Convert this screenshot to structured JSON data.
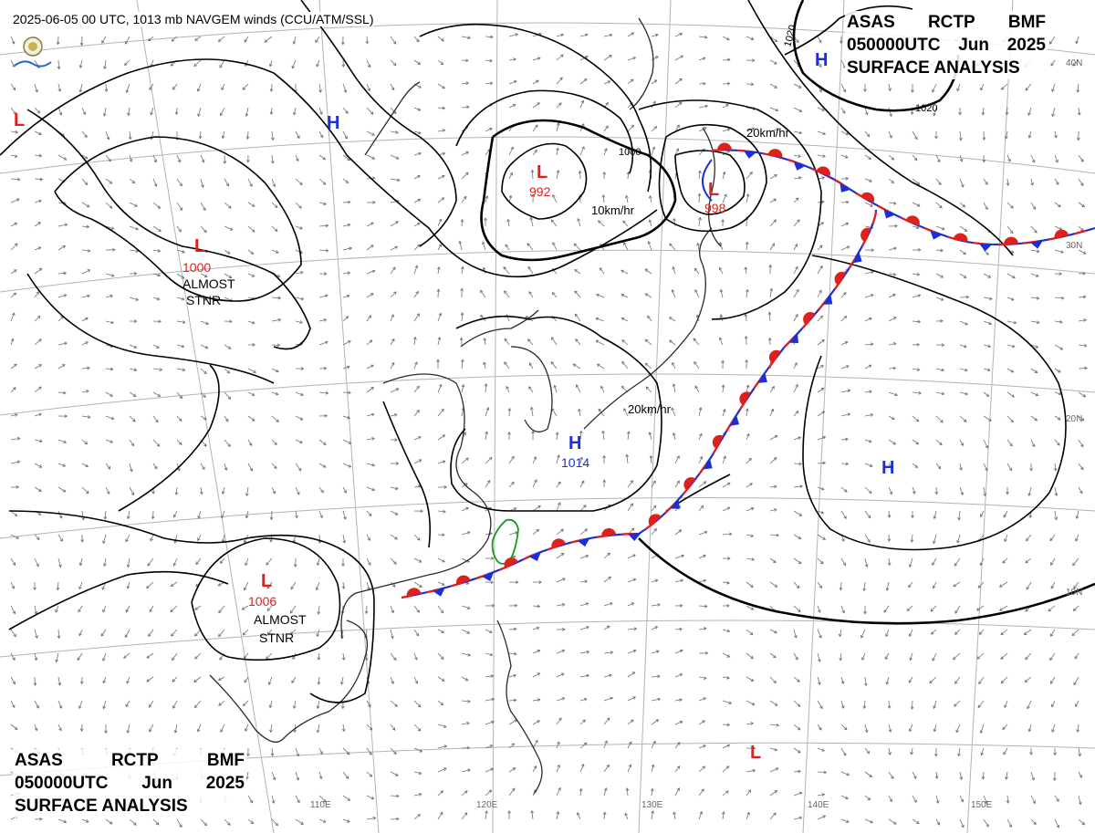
{
  "header": {
    "text": "2025-06-05 00 UTC, 1013 mb NAVGEM winds (CCU/ATM/SSL)"
  },
  "title_top": {
    "line1": [
      "ASAS",
      "RCTP",
      "BMF"
    ],
    "line2": [
      "050000UTC",
      "Jun",
      "2025"
    ],
    "line3": "SURFACE ANALYSIS"
  },
  "title_bottom": {
    "line1": [
      "ASAS",
      "RCTP",
      "BMF"
    ],
    "line2": [
      "050000UTC",
      "Jun",
      "2025"
    ],
    "line3": "SURFACE ANALYSIS"
  },
  "colors": {
    "low": "#e0201a",
    "high": "#1a2fd8",
    "isobar": "#000000",
    "coast": "#222222",
    "grid": "#b0b0b0",
    "wind": "#707070",
    "taiwan": "#1a9a1a"
  },
  "pressure_centers": [
    {
      "id": "low-west-edge",
      "type": "L",
      "value": ""
    },
    {
      "id": "high-mongolia",
      "type": "H",
      "value": ""
    },
    {
      "id": "low-tibet",
      "type": "L",
      "value": "1000",
      "note": "ALMOST STNR"
    },
    {
      "id": "low-north-china",
      "type": "L",
      "value": "992",
      "note": ""
    },
    {
      "id": "low-manchuria",
      "type": "L",
      "value": "998",
      "note": ""
    },
    {
      "id": "high-northeast",
      "type": "H",
      "value": ""
    },
    {
      "id": "high-east-china-sea",
      "type": "H",
      "value": "1014",
      "note": ""
    },
    {
      "id": "high-pacific",
      "type": "H",
      "value": ""
    },
    {
      "id": "low-indochina",
      "type": "L",
      "value": "1006",
      "note": "ALMOST STNR"
    },
    {
      "id": "low-philippine-sea",
      "type": "L",
      "value": ""
    }
  ],
  "isobar_labels": [
    "1000",
    "1020",
    "1020"
  ],
  "motion_labels": [
    "20km/hr",
    "10km/hr",
    "20km/hr"
  ],
  "lat_labels": [
    "40N",
    "30N",
    "20N",
    "10N"
  ],
  "lon_labels": [
    "110E",
    "120E",
    "130E",
    "140E",
    "150E"
  ]
}
